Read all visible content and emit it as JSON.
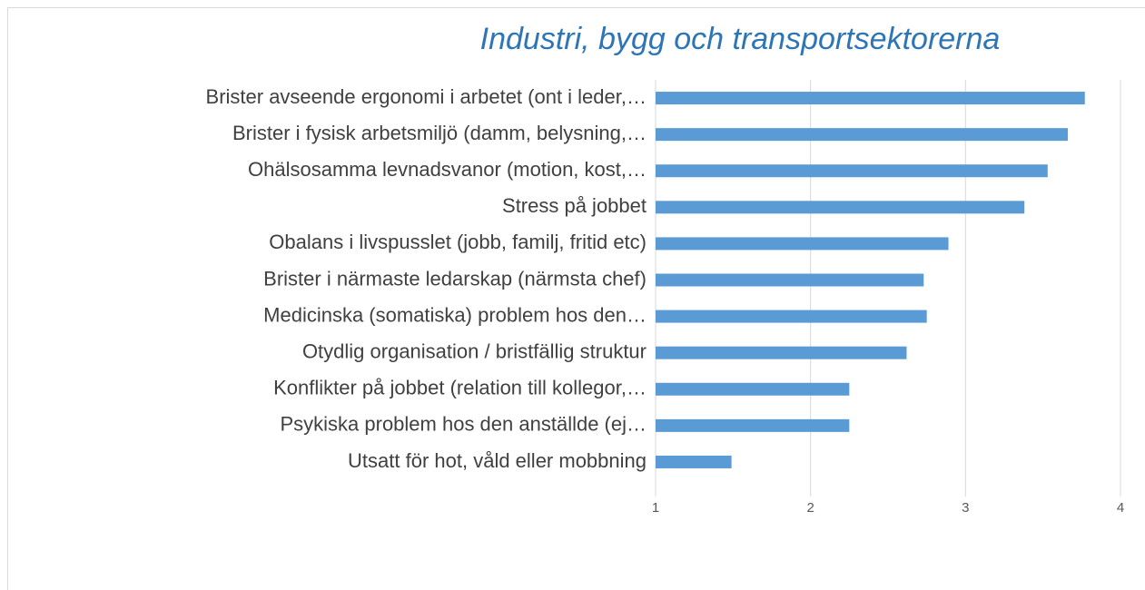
{
  "chart_data": {
    "type": "barh",
    "title": "Industri, bygg och transportsektorerna",
    "categories": [
      "Brister avseende ergonomi i arbetet (ont i leder,…",
      "Brister i fysisk arbetsmiljö (damm, belysning,…",
      "Ohälsosamma levnadsvanor (motion, kost,…",
      "Stress på jobbet",
      "Obalans i livspusslet (jobb, familj, fritid etc)",
      "Brister i närmaste ledarskap (närmsta chef)",
      "Medicinska (somatiska) problem hos den…",
      "Otydlig organisation / bristfällig struktur",
      "Konflikter på jobbet (relation till kollegor,…",
      "Psykiska problem hos den anställde (ej…",
      "Utsatt för hot, våld eller mobbning"
    ],
    "values": [
      3.77,
      3.66,
      3.53,
      3.38,
      2.89,
      2.73,
      2.75,
      2.62,
      2.25,
      2.25,
      1.49
    ],
    "color": "#5b9bd5",
    "xlim": [
      1,
      4
    ],
    "xticks": [
      1,
      2,
      3,
      4
    ],
    "grid": true
  }
}
